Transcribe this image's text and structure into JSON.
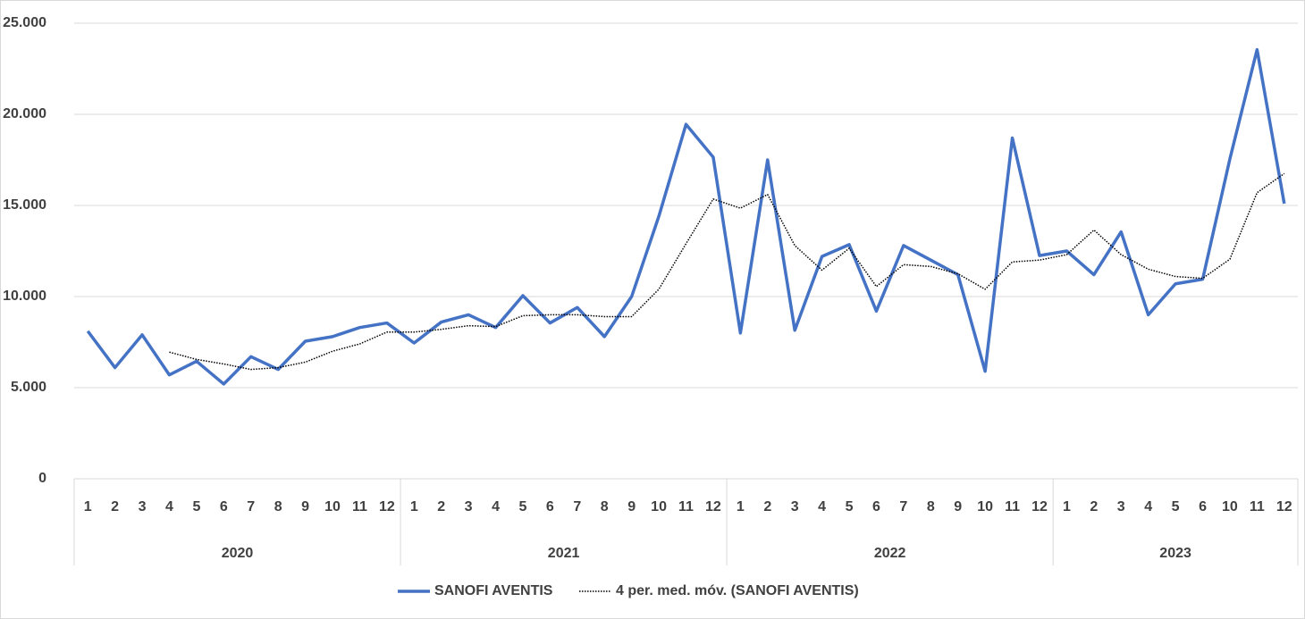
{
  "chart_data": {
    "type": "line",
    "groups": [
      {
        "label": "2020",
        "categories": [
          "1",
          "2",
          "3",
          "4",
          "5",
          "6",
          "7",
          "8",
          "9",
          "10",
          "11",
          "12"
        ]
      },
      {
        "label": "2021",
        "categories": [
          "1",
          "2",
          "3",
          "4",
          "5",
          "6",
          "7",
          "8",
          "9",
          "10",
          "11",
          "12"
        ]
      },
      {
        "label": "2022",
        "categories": [
          "1",
          "2",
          "3",
          "4",
          "5",
          "6",
          "7",
          "8",
          "9",
          "10",
          "11",
          "12"
        ]
      },
      {
        "label": "2023",
        "categories": [
          "1",
          "2",
          "3",
          "4",
          "5",
          "6",
          "10",
          "11",
          "12"
        ]
      }
    ],
    "series": [
      {
        "name": "SANOFI AVENTIS",
        "color": "#4472c4",
        "style": "solid",
        "values": [
          8100,
          6100,
          7900,
          5700,
          6450,
          5200,
          6700,
          6000,
          7550,
          7800,
          8300,
          8550,
          7450,
          8600,
          9000,
          8300,
          10050,
          8550,
          9400,
          7800,
          10000,
          14400,
          19450,
          17650,
          8000,
          17500,
          8150,
          12200,
          12850,
          9200,
          12800,
          12000,
          11200,
          5900,
          18700,
          12250,
          12500,
          11200,
          13550,
          9000,
          10700,
          10950,
          17550,
          23550,
          15100
        ]
      },
      {
        "name": "4 per. med. móv. (SANOFI AVENTIS)",
        "color": "#000000",
        "style": "dotted",
        "values": [
          null,
          null,
          null,
          6950,
          6550,
          6300,
          6000,
          6100,
          6400,
          7000,
          7400,
          8050,
          8050,
          8200,
          8400,
          8350,
          8950,
          9000,
          9000,
          8900,
          8900,
          10400,
          12900,
          15350,
          14850,
          15600,
          12800,
          11450,
          12650,
          10550,
          11750,
          11650,
          11250,
          10400,
          11900,
          12000,
          12300,
          13650,
          12300,
          11500,
          11100,
          11000,
          12050,
          15700,
          16750
        ]
      }
    ],
    "ylim": [
      0,
      25000
    ],
    "yticks": [
      0,
      {
        "value": 5000,
        "label": "5.000"
      },
      {
        "value": 10000,
        "label": "10.000"
      },
      {
        "value": 15000,
        "label": "15.000"
      },
      {
        "value": 20000,
        "label": "20.000"
      },
      {
        "value": 25000,
        "label": "25.000"
      }
    ],
    "grid": true,
    "legend": "bottom"
  }
}
